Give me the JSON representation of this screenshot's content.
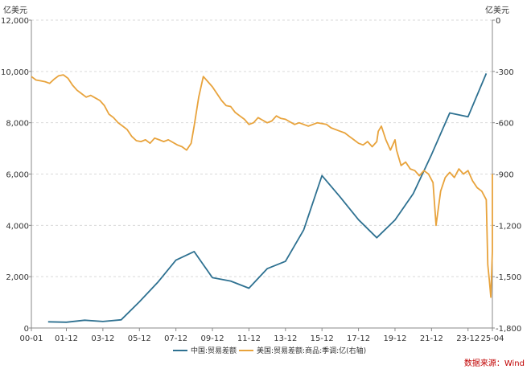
{
  "chart_data": {
    "type": "line",
    "left_axis_unit": "亿美元",
    "right_axis_unit": "亿美元",
    "yleft": {
      "min": 0,
      "max": 12000,
      "ticks": [
        0,
        2000,
        4000,
        6000,
        8000,
        10000,
        12000
      ],
      "tick_labels": [
        "0",
        "2,000",
        "4,000",
        "6,000",
        "8,000",
        "10,000",
        "12,000"
      ]
    },
    "yright": {
      "min": -1800,
      "max": 0,
      "ticks": [
        0,
        -300,
        -600,
        -900,
        -1200,
        -1500,
        -1800
      ],
      "tick_labels": [
        "0",
        "-300",
        "-600",
        "-900",
        "-1,200",
        "-1,500",
        "-1,800"
      ]
    },
    "x_range": [
      "2000-01",
      "2025-04"
    ],
    "x_tick_labels": [
      "00-01",
      "01-12",
      "03-12",
      "05-12",
      "07-12",
      "09-12",
      "11-12",
      "13-12",
      "15-12",
      "17-12",
      "19-12",
      "21-12",
      "23-12",
      "25-04"
    ],
    "grid": "horizontal-dashed",
    "legend_position": "bottom",
    "series": [
      {
        "name": "中国:贸易差额",
        "axis": "left",
        "color": "#2e7191",
        "points": [
          [
            "2000-12",
            241
          ],
          [
            "2001-12",
            226
          ],
          [
            "2002-12",
            304
          ],
          [
            "2003-12",
            255
          ],
          [
            "2004-12",
            320
          ],
          [
            "2005-12",
            1020
          ],
          [
            "2006-12",
            1775
          ],
          [
            "2007-12",
            2643
          ],
          [
            "2008-12",
            2981
          ],
          [
            "2009-12",
            1961
          ],
          [
            "2010-12",
            1831
          ],
          [
            "2011-12",
            1550
          ],
          [
            "2012-12",
            2311
          ],
          [
            "2013-12",
            2598
          ],
          [
            "2014-12",
            3825
          ],
          [
            "2015-12",
            5939
          ],
          [
            "2016-12",
            5100
          ],
          [
            "2017-12",
            4220
          ],
          [
            "2018-12",
            3518
          ],
          [
            "2019-12",
            4210
          ],
          [
            "2020-12",
            5240
          ],
          [
            "2021-12",
            6760
          ],
          [
            "2022-12",
            8380
          ],
          [
            "2023-12",
            8230
          ],
          [
            "2024-12",
            9920
          ]
        ]
      },
      {
        "name": "美国:贸易差额:商品:季调:亿(右轴)",
        "axis": "right",
        "color": "#e8a33c",
        "points": [
          [
            "2000-01",
            -330
          ],
          [
            "2000-04",
            -350
          ],
          [
            "2000-07",
            -355
          ],
          [
            "2000-10",
            -360
          ],
          [
            "2001-01",
            -370
          ],
          [
            "2001-04",
            -345
          ],
          [
            "2001-07",
            -325
          ],
          [
            "2001-10",
            -320
          ],
          [
            "2002-01",
            -340
          ],
          [
            "2002-04",
            -380
          ],
          [
            "2002-07",
            -410
          ],
          [
            "2002-10",
            -430
          ],
          [
            "2003-01",
            -450
          ],
          [
            "2003-04",
            -440
          ],
          [
            "2003-07",
            -455
          ],
          [
            "2003-10",
            -470
          ],
          [
            "2004-01",
            -500
          ],
          [
            "2004-04",
            -550
          ],
          [
            "2004-07",
            -570
          ],
          [
            "2004-10",
            -600
          ],
          [
            "2005-01",
            -620
          ],
          [
            "2005-04",
            -640
          ],
          [
            "2005-07",
            -680
          ],
          [
            "2005-10",
            -705
          ],
          [
            "2006-01",
            -710
          ],
          [
            "2006-04",
            -700
          ],
          [
            "2006-07",
            -720
          ],
          [
            "2006-10",
            -690
          ],
          [
            "2007-01",
            -700
          ],
          [
            "2007-04",
            -710
          ],
          [
            "2007-07",
            -700
          ],
          [
            "2007-10",
            -715
          ],
          [
            "2008-01",
            -730
          ],
          [
            "2008-04",
            -740
          ],
          [
            "2008-07",
            -760
          ],
          [
            "2008-10",
            -720
          ],
          [
            "2008-12",
            -620
          ],
          [
            "2009-03",
            -450
          ],
          [
            "2009-06",
            -330
          ],
          [
            "2009-09",
            -360
          ],
          [
            "2009-12",
            -390
          ],
          [
            "2010-03",
            -430
          ],
          [
            "2010-06",
            -470
          ],
          [
            "2010-09",
            -500
          ],
          [
            "2010-12",
            -505
          ],
          [
            "2011-03",
            -540
          ],
          [
            "2011-06",
            -560
          ],
          [
            "2011-09",
            -580
          ],
          [
            "2011-12",
            -610
          ],
          [
            "2012-03",
            -600
          ],
          [
            "2012-06",
            -570
          ],
          [
            "2012-09",
            -585
          ],
          [
            "2012-12",
            -600
          ],
          [
            "2013-03",
            -590
          ],
          [
            "2013-06",
            -560
          ],
          [
            "2013-09",
            -575
          ],
          [
            "2013-12",
            -580
          ],
          [
            "2014-03",
            -595
          ],
          [
            "2014-06",
            -610
          ],
          [
            "2014-09",
            -600
          ],
          [
            "2014-12",
            -610
          ],
          [
            "2015-03",
            -620
          ],
          [
            "2015-06",
            -610
          ],
          [
            "2015-09",
            -600
          ],
          [
            "2015-12",
            -605
          ],
          [
            "2016-03",
            -610
          ],
          [
            "2016-06",
            -630
          ],
          [
            "2016-09",
            -640
          ],
          [
            "2016-12",
            -650
          ],
          [
            "2017-03",
            -660
          ],
          [
            "2017-06",
            -680
          ],
          [
            "2017-09",
            -700
          ],
          [
            "2017-12",
            -720
          ],
          [
            "2018-03",
            -730
          ],
          [
            "2018-06",
            -710
          ],
          [
            "2018-09",
            -740
          ],
          [
            "2018-12",
            -710
          ],
          [
            "2019-01",
            -650
          ],
          [
            "2019-03",
            -620
          ],
          [
            "2019-06",
            -700
          ],
          [
            "2019-09",
            -760
          ],
          [
            "2019-12",
            -700
          ],
          [
            "2020-01",
            -760
          ],
          [
            "2020-04",
            -850
          ],
          [
            "2020-07",
            -830
          ],
          [
            "2020-10",
            -870
          ],
          [
            "2021-01",
            -880
          ],
          [
            "2021-04",
            -910
          ],
          [
            "2021-07",
            -880
          ],
          [
            "2021-10",
            -900
          ],
          [
            "2022-01",
            -950
          ],
          [
            "2022-03",
            -1200
          ],
          [
            "2022-06",
            -1000
          ],
          [
            "2022-09",
            -920
          ],
          [
            "2022-12",
            -890
          ],
          [
            "2023-03",
            -920
          ],
          [
            "2023-06",
            -870
          ],
          [
            "2023-09",
            -900
          ],
          [
            "2023-12",
            -880
          ],
          [
            "2024-03",
            -940
          ],
          [
            "2024-06",
            -980
          ],
          [
            "2024-09",
            -1000
          ],
          [
            "2024-12",
            -1050
          ],
          [
            "2025-01",
            -1430
          ],
          [
            "2025-02",
            -1520
          ],
          [
            "2025-03",
            -1620
          ],
          [
            "2025-04",
            -1350
          ],
          [
            "2025-04",
            -900
          ]
        ]
      }
    ],
    "source": "数据来源：Wind"
  }
}
